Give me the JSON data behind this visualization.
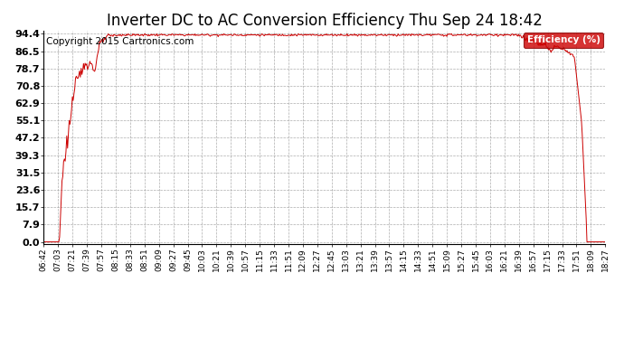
{
  "title": "Inverter DC to AC Conversion Efficiency Thu Sep 24 18:42",
  "copyright": "Copyright 2015 Cartronics.com",
  "legend_label": "Efficiency (%)",
  "legend_bg": "#cc0000",
  "legend_fg": "#ffffff",
  "line_color": "#cc0000",
  "bg_color": "#ffffff",
  "plot_bg_color": "#ffffff",
  "grid_color": "#999999",
  "yticks": [
    0.0,
    7.9,
    15.7,
    23.6,
    31.5,
    39.3,
    47.2,
    55.1,
    62.9,
    70.8,
    78.7,
    86.5,
    94.4
  ],
  "ymin": 0.0,
  "ymax": 94.4,
  "xtick_labels": [
    "06:42",
    "07:03",
    "07:21",
    "07:39",
    "07:57",
    "08:15",
    "08:33",
    "08:51",
    "09:09",
    "09:27",
    "09:45",
    "10:03",
    "10:21",
    "10:39",
    "10:57",
    "11:15",
    "11:33",
    "11:51",
    "12:09",
    "12:27",
    "12:45",
    "13:03",
    "13:21",
    "13:39",
    "13:57",
    "14:15",
    "14:33",
    "14:51",
    "15:09",
    "15:27",
    "15:45",
    "16:03",
    "16:21",
    "16:39",
    "16:57",
    "17:15",
    "17:33",
    "17:51",
    "18:09",
    "18:27"
  ],
  "title_fontsize": 12,
  "copyright_fontsize": 7.5,
  "tick_fontsize": 6.5,
  "ytick_fontsize": 8
}
